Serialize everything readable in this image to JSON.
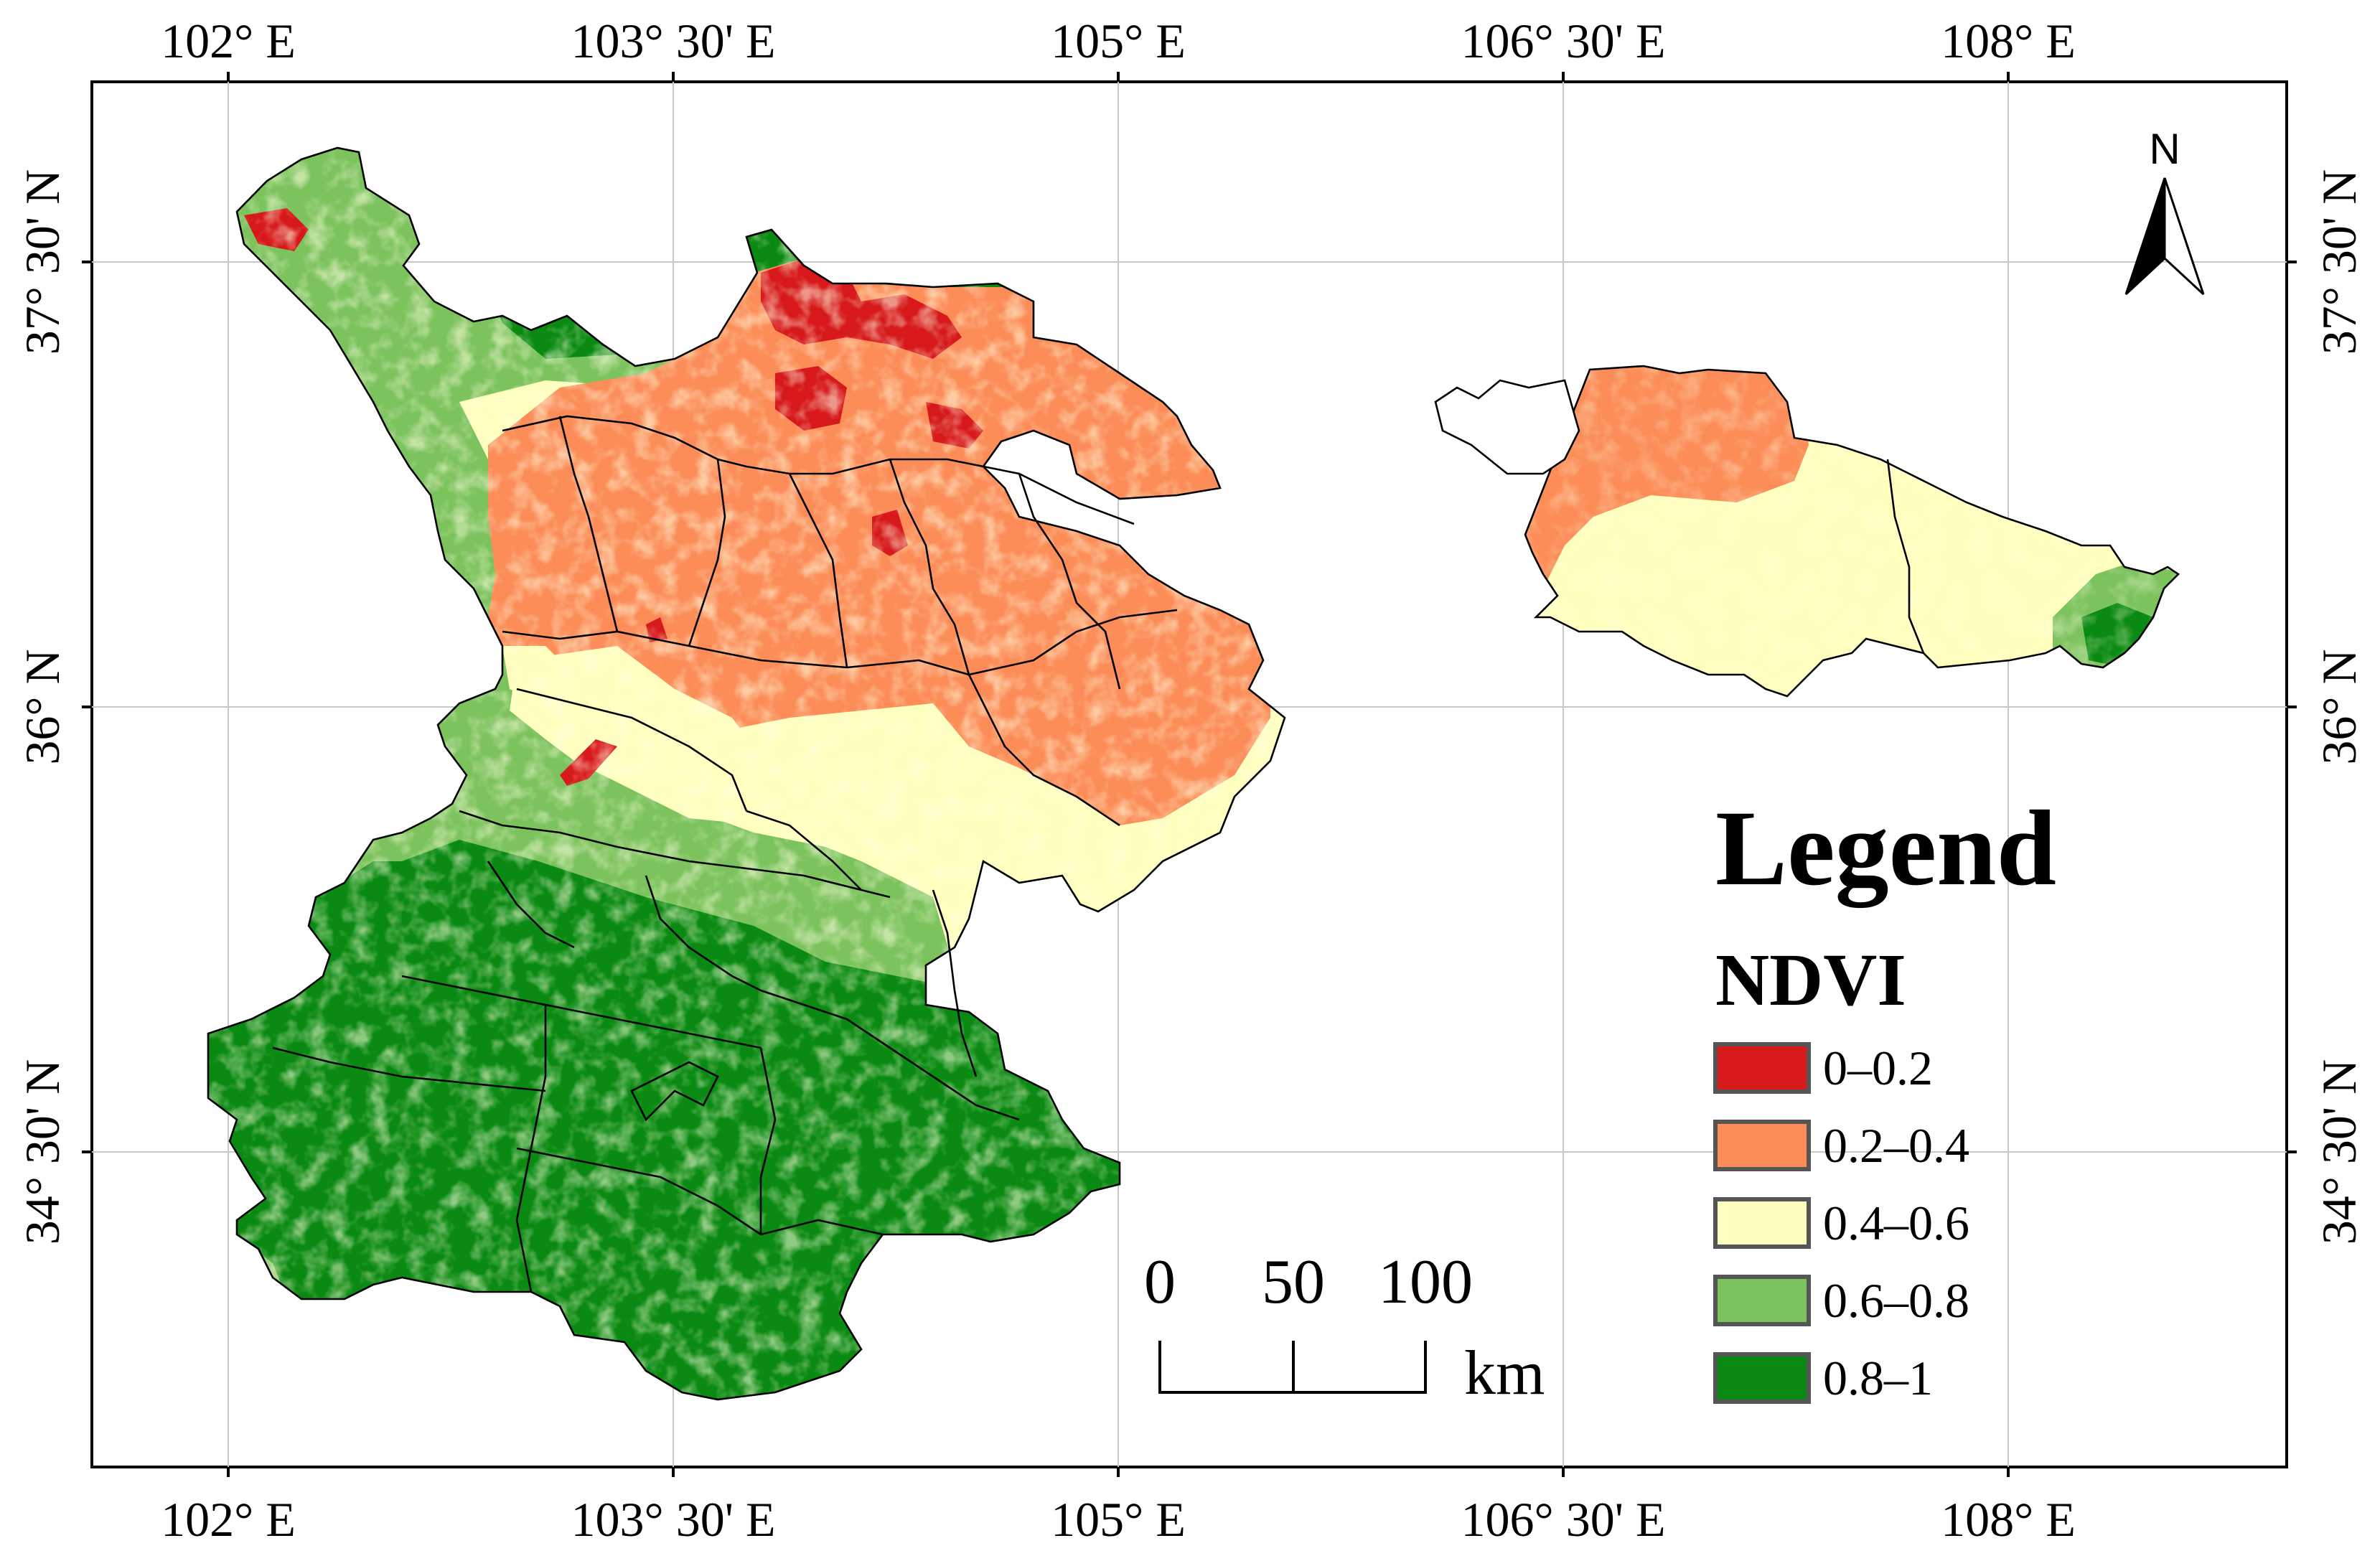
{
  "map": {
    "longitude_labels": [
      "102° E",
      "103° 30' E",
      "105° E",
      "106° 30' E",
      "108° E"
    ],
    "latitude_labels": [
      "37° 30' N",
      "36° N",
      "34° 30' N"
    ],
    "north_label": "N",
    "scale_bar": {
      "ticks": [
        "0",
        "50",
        "100"
      ],
      "unit": "km"
    },
    "legend": {
      "title": "Legend",
      "subtitle": "NDVI",
      "classes": [
        {
          "label": "0–0.2",
          "color": "#d7191c"
        },
        {
          "label": "0.2–0.4",
          "color": "#fc8d59"
        },
        {
          "label": "0.4–0.6",
          "color": "#ffffbf"
        },
        {
          "label": "0.6–0.8",
          "color": "#7cc35e"
        },
        {
          "label": "0.8–1",
          "color": "#0a8a12"
        }
      ]
    }
  }
}
